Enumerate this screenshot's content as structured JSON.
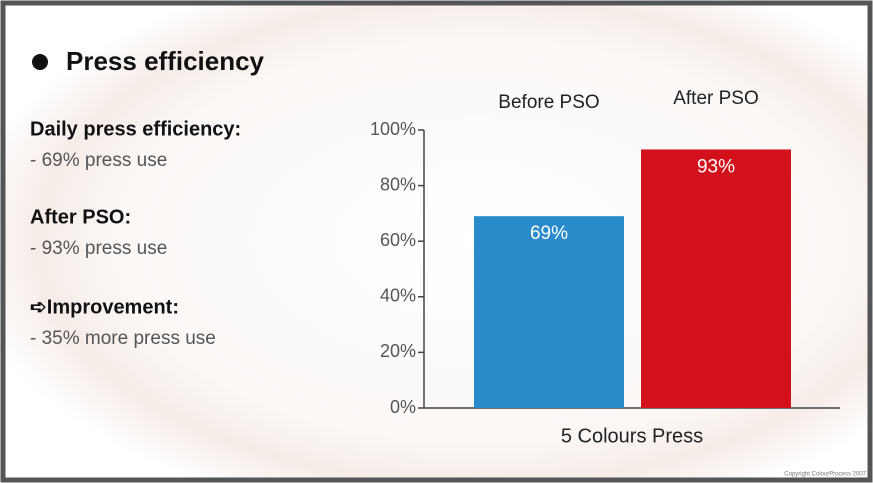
{
  "slide": {
    "heading": "Press efficiency",
    "items": [
      {
        "label": "Daily press efficiency:",
        "text": "- 69% press use"
      },
      {
        "label": "After PSO:",
        "text": "- 93% press use"
      },
      {
        "label": "➪Improvement:",
        "text": "- 35% more press use"
      }
    ],
    "copyright": "Copyright ColourProcess 2007"
  },
  "chart_data": {
    "type": "bar",
    "categories": [
      "Before PSO",
      "After PSO"
    ],
    "values": [
      69,
      93
    ],
    "value_labels": [
      "69%",
      "93%"
    ],
    "colors": [
      "#2a8bcb",
      "#d3111c"
    ],
    "x_label": "5 Colours Press",
    "ylim": [
      0,
      100
    ],
    "yticks": [
      {
        "value": 0,
        "label": "0%"
      },
      {
        "value": 20,
        "label": "20%"
      },
      {
        "value": 40,
        "label": "40%"
      },
      {
        "value": 60,
        "label": "60%"
      },
      {
        "value": 80,
        "label": "80%"
      },
      {
        "value": 100,
        "label": "100%"
      }
    ]
  }
}
